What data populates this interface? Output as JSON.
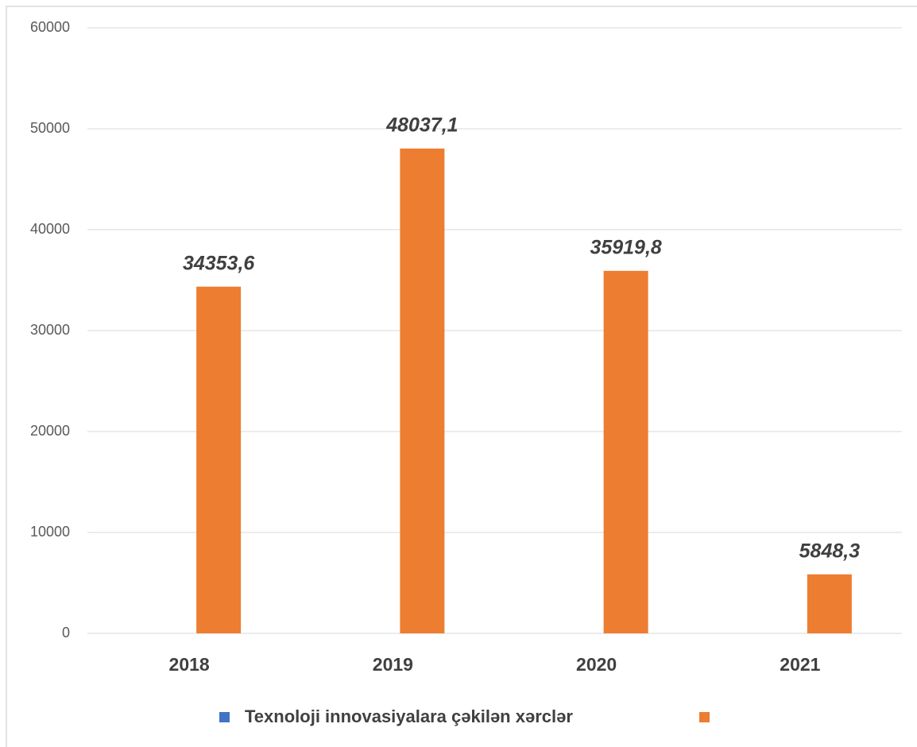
{
  "chart_data": {
    "type": "bar",
    "categories": [
      "2018",
      "2019",
      "2020",
      "2021"
    ],
    "series": [
      {
        "name": "Texnoloji innovasiyalara çəkilən xərclər",
        "color": "#4472c4",
        "values": [
          null,
          null,
          null,
          null
        ]
      },
      {
        "color": "#ed7d31",
        "values": [
          34353.6,
          48037.1,
          35919.8,
          5848.3
        ],
        "value_labels": [
          "34353,6",
          "48037,1",
          "35919,8",
          "5848,3"
        ]
      }
    ],
    "ylim": [
      0,
      60000
    ],
    "yticks": [
      0,
      10000,
      20000,
      30000,
      40000,
      50000,
      60000
    ],
    "grid": true,
    "legend": "bottom"
  }
}
